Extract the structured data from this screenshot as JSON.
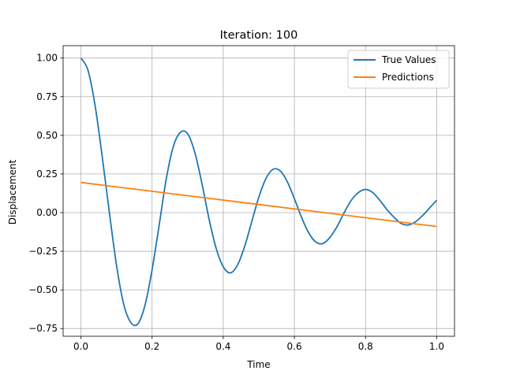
{
  "chart_data": {
    "type": "line",
    "title": "Iteration: 100",
    "xlabel": "Time",
    "ylabel": "Displacement",
    "xlim": [
      -0.05,
      1.05
    ],
    "ylim": [
      -0.8,
      1.08
    ],
    "xticks": [
      0.0,
      0.2,
      0.4,
      0.6,
      0.8,
      1.0
    ],
    "xtick_labels": [
      "0.0",
      "0.2",
      "0.4",
      "0.6",
      "0.8",
      "1.0"
    ],
    "yticks": [
      -0.75,
      -0.5,
      -0.25,
      0.0,
      0.25,
      0.5,
      0.75,
      1.0
    ],
    "ytick_labels": [
      "−0.75",
      "−0.50",
      "−0.25",
      "0.00",
      "0.25",
      "0.50",
      "0.75",
      "1.00"
    ],
    "grid": true,
    "legend_position": "top-right",
    "series": [
      {
        "name": "True Values",
        "color": "#1f77b4",
        "x": [
          0.0,
          0.02,
          0.04,
          0.06,
          0.08,
          0.1,
          0.12,
          0.14,
          0.16,
          0.18,
          0.2,
          0.22,
          0.24,
          0.26,
          0.28,
          0.3,
          0.32,
          0.34,
          0.36,
          0.38,
          0.4,
          0.42,
          0.44,
          0.46,
          0.48,
          0.5,
          0.52,
          0.54,
          0.56,
          0.58,
          0.6,
          0.62,
          0.64,
          0.66,
          0.68,
          0.7,
          0.72,
          0.74,
          0.76,
          0.78,
          0.8,
          0.82,
          0.84,
          0.86,
          0.88,
          0.9,
          0.92,
          0.94,
          0.96,
          0.98,
          1.0
        ],
        "y": [
          1.0,
          0.92,
          0.69,
          0.36,
          0.0,
          -0.34,
          -0.59,
          -0.71,
          -0.72,
          -0.6,
          -0.37,
          -0.08,
          0.22,
          0.43,
          0.52,
          0.51,
          0.39,
          0.19,
          -0.04,
          -0.23,
          -0.35,
          -0.39,
          -0.34,
          -0.22,
          -0.06,
          0.1,
          0.22,
          0.28,
          0.27,
          0.2,
          0.09,
          -0.03,
          -0.13,
          -0.19,
          -0.2,
          -0.16,
          -0.09,
          0.0,
          0.08,
          0.13,
          0.15,
          0.13,
          0.08,
          0.02,
          -0.03,
          -0.07,
          -0.08,
          -0.06,
          -0.02,
          0.03,
          0.08
        ]
      },
      {
        "name": "Predictions",
        "color": "#ff7f0e",
        "x": [
          0.0,
          1.0
        ],
        "y": [
          0.195,
          -0.09
        ]
      }
    ]
  }
}
